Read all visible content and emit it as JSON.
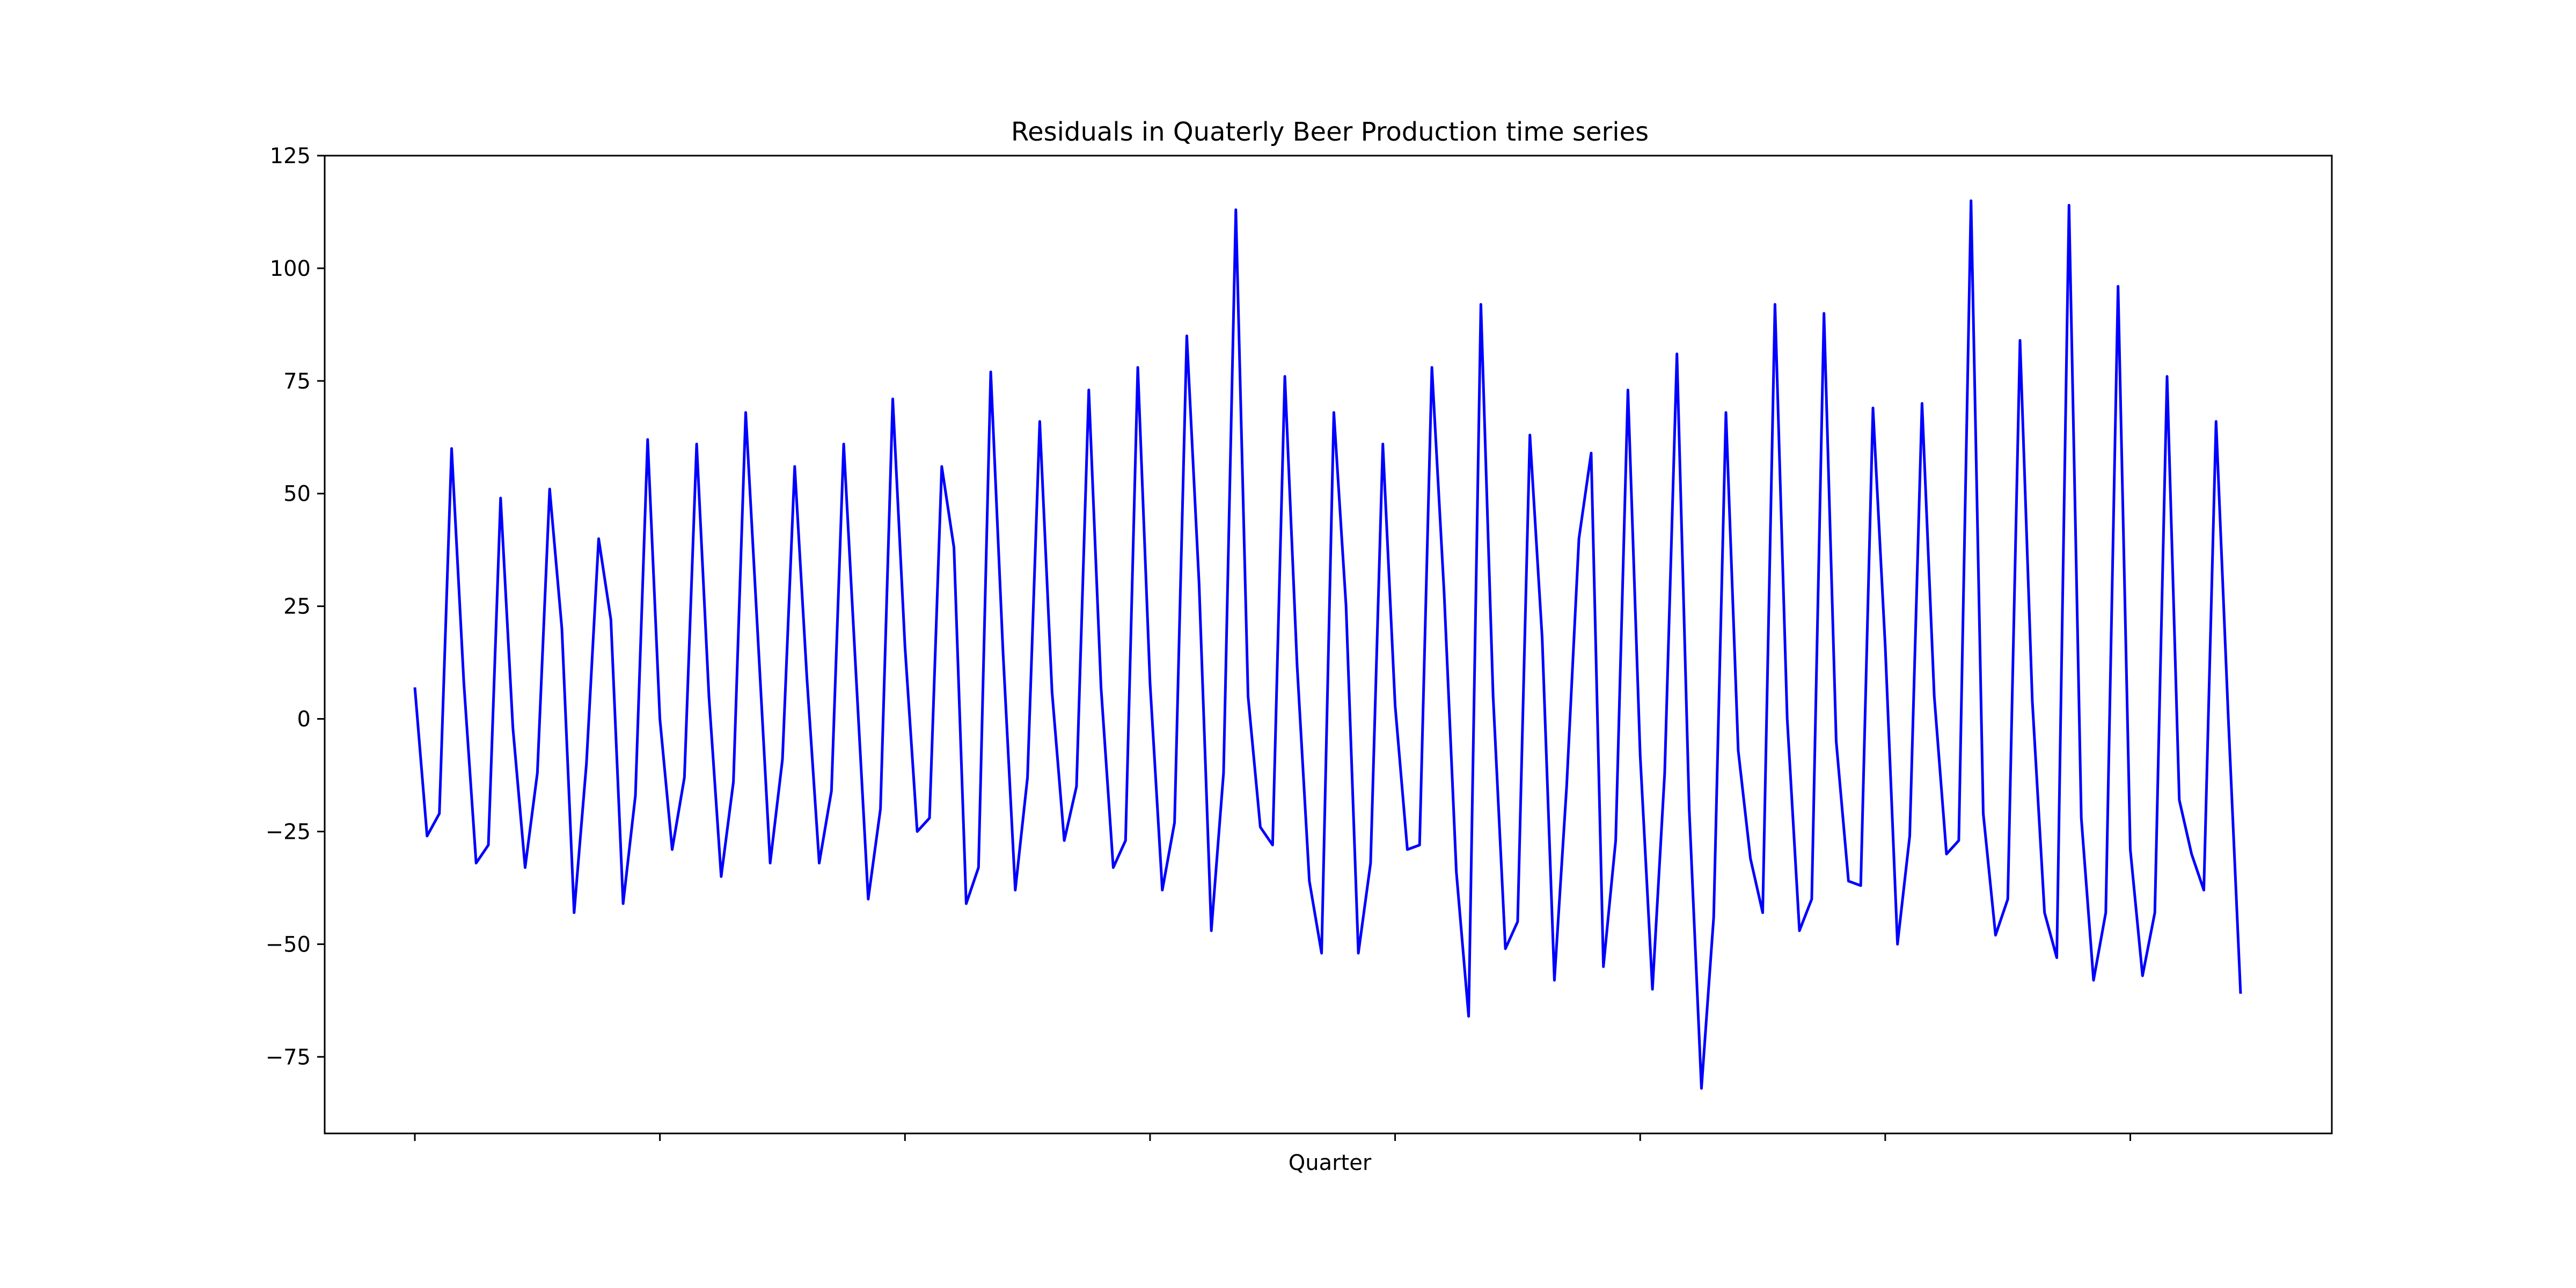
{
  "chart_data": {
    "type": "line",
    "title": "Residuals in Quaterly Beer Production time series",
    "xlabel": "Quarter",
    "ylabel": "",
    "ylim": [
      -92,
      125
    ],
    "yticks": [
      -75,
      -50,
      -25,
      0,
      25,
      50,
      75,
      100,
      125
    ],
    "xticks_labeled": false,
    "grid": false,
    "series": [
      {
        "color": "#0000ff",
        "values": [
          7,
          -26,
          -21,
          60,
          8,
          -32,
          -28,
          49,
          -2,
          -33,
          -12,
          51,
          20,
          -43,
          -10,
          40,
          22,
          -41,
          -17,
          62,
          0,
          -29,
          -13,
          61,
          5,
          -35,
          -14,
          68,
          18,
          -32,
          -9,
          56,
          9,
          -32,
          -16,
          61,
          10,
          -40,
          -20,
          71,
          16,
          -25,
          -22,
          56,
          38,
          -41,
          -33,
          77,
          15,
          -38,
          -13,
          66,
          6,
          -27,
          -15,
          73,
          7,
          -33,
          -27,
          78,
          8,
          -38,
          -23,
          85,
          30,
          -47,
          -12,
          113,
          5,
          -24,
          -28,
          76,
          12,
          -36,
          -52,
          68,
          25,
          -52,
          -32,
          61,
          3,
          -29,
          -28,
          78,
          28,
          -34,
          -66,
          92,
          5,
          -51,
          -45,
          63,
          18,
          -58,
          -15,
          40,
          59,
          -55,
          -27,
          73,
          -8,
          -60,
          -12,
          81,
          -20,
          -82,
          -44,
          68,
          -7,
          -31,
          -43,
          92,
          0,
          -47,
          -40,
          90,
          -5,
          -36,
          -37,
          69,
          16,
          -50,
          -26,
          70,
          5,
          -30,
          -27,
          115,
          -21,
          -48,
          -40,
          84,
          4,
          -43,
          -53,
          114,
          -22,
          -58,
          -43,
          96,
          -29,
          -57,
          -43,
          76,
          -18,
          -30,
          -38,
          66,
          0,
          -61
        ]
      }
    ]
  }
}
